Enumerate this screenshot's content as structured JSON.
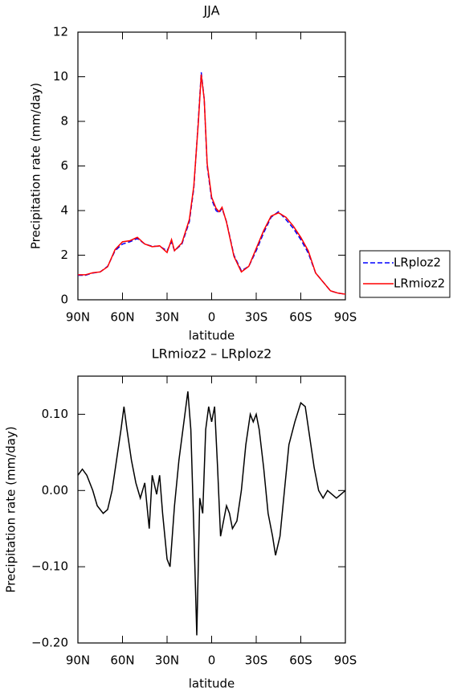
{
  "chart_data": [
    {
      "type": "line",
      "title": "JJA",
      "x_label": "latitude",
      "y_label": "Precipitation rate (mm/day)",
      "x": [
        90,
        85,
        80,
        75,
        70,
        65,
        60,
        55,
        50,
        45,
        40,
        35,
        30,
        27,
        25,
        20,
        15,
        12,
        9,
        7,
        5,
        3,
        0,
        -3,
        -5,
        -7,
        -10,
        -15,
        -20,
        -25,
        -30,
        -35,
        -40,
        -45,
        -50,
        -55,
        -60,
        -65,
        -70,
        -75,
        -80,
        -85,
        -90
      ],
      "series": [
        {
          "name": "LRploz2",
          "color": "#0000ff",
          "dash": true,
          "values": [
            1.1,
            1.1,
            1.2,
            1.25,
            1.5,
            2.2,
            2.5,
            2.6,
            2.75,
            2.5,
            2.4,
            2.4,
            2.2,
            2.6,
            2.2,
            2.5,
            3.5,
            5.0,
            8.0,
            10.2,
            9.0,
            6.0,
            4.5,
            4.0,
            3.9,
            4.1,
            3.5,
            2.0,
            1.3,
            1.5,
            2.2,
            3.0,
            3.7,
            3.95,
            3.6,
            3.2,
            2.7,
            2.1,
            1.2,
            0.8,
            0.4,
            0.3,
            0.25
          ]
        },
        {
          "name": "LRmioz2",
          "color": "#ff0000",
          "dash": false,
          "values": [
            1.12,
            1.12,
            1.21,
            1.25,
            1.48,
            2.25,
            2.6,
            2.65,
            2.8,
            2.5,
            2.38,
            2.42,
            2.12,
            2.7,
            2.2,
            2.55,
            3.6,
            5.1,
            7.9,
            10.1,
            9.0,
            6.1,
            4.6,
            4.1,
            3.95,
            4.15,
            3.48,
            1.95,
            1.25,
            1.5,
            2.3,
            3.1,
            3.75,
            3.9,
            3.7,
            3.3,
            2.8,
            2.2,
            1.2,
            0.8,
            0.4,
            0.3,
            0.25
          ]
        }
      ],
      "xlim": [
        90,
        -90
      ],
      "xticks": [
        {
          "value": 90,
          "label": "90N"
        },
        {
          "value": 60,
          "label": "60N"
        },
        {
          "value": 30,
          "label": "30N"
        },
        0,
        {
          "value": -30,
          "label": "30S"
        },
        {
          "value": -60,
          "label": "60S"
        },
        {
          "value": -90,
          "label": "90S"
        }
      ],
      "ylim": [
        0,
        12
      ],
      "yticks": [
        0,
        2,
        4,
        6,
        8,
        10,
        12
      ],
      "grid": false,
      "legend": "right"
    },
    {
      "type": "line",
      "title": "LRmioz2 – LRploz2",
      "x_label": "latitude",
      "y_label": "Precipitation rate (mm/day)",
      "x": [
        90,
        87,
        84,
        80,
        77,
        73,
        70,
        67,
        64,
        61,
        59,
        57,
        54,
        51,
        48,
        45,
        42,
        40,
        37,
        35,
        33,
        30,
        28,
        25,
        22,
        20,
        18,
        16,
        14,
        12,
        10,
        8,
        6,
        4,
        2,
        0,
        -2,
        -4,
        -6,
        -8,
        -10,
        -12,
        -14,
        -17,
        -20,
        -23,
        -26,
        -28,
        -30,
        -32,
        -35,
        -38,
        -41,
        -43,
        -46,
        -49,
        -52,
        -56,
        -60,
        -63,
        -66,
        -69,
        -72,
        -75,
        -78,
        -81,
        -84,
        -87,
        -90
      ],
      "color": "#000000",
      "values": [
        0.02,
        0.028,
        0.02,
        0.0,
        -0.02,
        -0.03,
        -0.025,
        0.0,
        0.04,
        0.08,
        0.11,
        0.08,
        0.04,
        0.01,
        -0.01,
        0.01,
        -0.05,
        0.02,
        -0.005,
        0.02,
        -0.03,
        -0.09,
        -0.1,
        -0.02,
        0.04,
        0.07,
        0.1,
        0.13,
        0.08,
        -0.05,
        -0.19,
        -0.01,
        -0.03,
        0.08,
        0.11,
        0.09,
        0.11,
        0.03,
        -0.06,
        -0.04,
        -0.02,
        -0.03,
        -0.05,
        -0.04,
        0.0,
        0.06,
        0.1,
        0.09,
        0.1,
        0.08,
        0.03,
        -0.03,
        -0.06,
        -0.085,
        -0.06,
        0.0,
        0.06,
        0.09,
        0.115,
        0.11,
        0.07,
        0.03,
        0.0,
        -0.01,
        0.0,
        -0.005,
        -0.01,
        -0.005,
        0.0
      ],
      "xlim": [
        90,
        -90
      ],
      "xticks": [
        {
          "value": 90,
          "label": "90N"
        },
        {
          "value": 60,
          "label": "60N"
        },
        {
          "value": 30,
          "label": "30N"
        },
        0,
        {
          "value": -30,
          "label": "30S"
        },
        {
          "value": -60,
          "label": "60S"
        },
        {
          "value": -90,
          "label": "90S"
        }
      ],
      "ylim": [
        -0.2,
        0.15
      ],
      "yticks": [
        {
          "value": -0.2,
          "label": "−0.20"
        },
        {
          "value": -0.1,
          "label": "−0.10"
        },
        {
          "value": 0,
          "label": "0.00"
        },
        {
          "value": 0.1,
          "label": "0.10"
        }
      ],
      "grid": false
    }
  ]
}
